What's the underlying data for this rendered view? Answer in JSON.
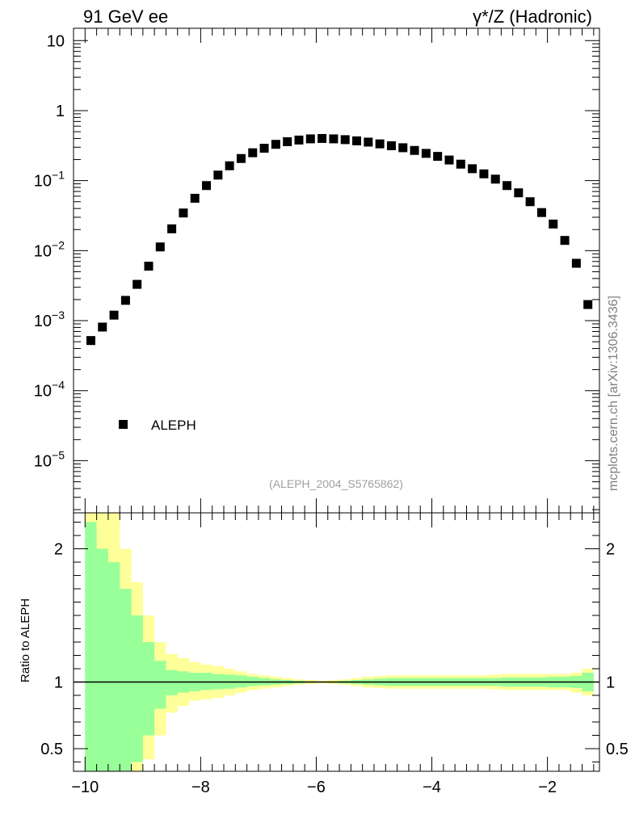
{
  "header": {
    "left_title": "91 GeV ee",
    "right_title": "γ*/Z (Hadronic)"
  },
  "side_label": "mcplots.cern.ch [arXiv:1306.3436]",
  "analysis_tag": "(ALEPH_2004_S5765862)",
  "legend": {
    "entry": "ALEPH",
    "position": "bottom-left"
  },
  "ratio_ylabel": "Ratio to ALEPH",
  "colors": {
    "band_outer": "#ffff99",
    "band_inner": "#99ff99",
    "marker": "#000000",
    "side_label": "#808080",
    "analysis_tag": "#a0a0a0"
  },
  "chart_data": [
    {
      "type": "scatter",
      "series": [
        {
          "name": "ALEPH",
          "x": [
            -9.9,
            -9.7,
            -9.5,
            -9.3,
            -9.1,
            -8.9,
            -8.7,
            -8.5,
            -8.3,
            -8.1,
            -7.9,
            -7.7,
            -7.5,
            -7.3,
            -7.1,
            -6.9,
            -6.7,
            -6.5,
            -6.3,
            -6.1,
            -5.9,
            -5.7,
            -5.5,
            -5.3,
            -5.1,
            -4.9,
            -4.7,
            -4.5,
            -4.3,
            -4.1,
            -3.9,
            -3.7,
            -3.5,
            -3.3,
            -3.1,
            -2.9,
            -2.7,
            -2.5,
            -2.3,
            -2.1,
            -1.9,
            -1.7,
            -1.5,
            -1.3
          ],
          "y": [
            0.00052,
            0.00081,
            0.0012,
            0.00195,
            0.0033,
            0.006,
            0.0113,
            0.0205,
            0.0345,
            0.056,
            0.085,
            0.12,
            0.163,
            0.207,
            0.25,
            0.29,
            0.33,
            0.36,
            0.38,
            0.395,
            0.4,
            0.395,
            0.385,
            0.37,
            0.355,
            0.335,
            0.315,
            0.295,
            0.27,
            0.245,
            0.222,
            0.197,
            0.172,
            0.148,
            0.125,
            0.105,
            0.085,
            0.067,
            0.05,
            0.035,
            0.024,
            0.014,
            0.0066,
            0.0017
          ]
        }
      ],
      "y_scale": "log",
      "xlim": [
        -10.2,
        -1.1
      ],
      "ylim": [
        1.8e-06,
        15
      ],
      "y_ticks": [
        {
          "value": 10,
          "base": "10",
          "exp": ""
        },
        {
          "value": 1,
          "base": "1",
          "exp": ""
        },
        {
          "value": 0.1,
          "base": "10",
          "exp": "−1"
        },
        {
          "value": 0.01,
          "base": "10",
          "exp": "−2"
        },
        {
          "value": 0.001,
          "base": "10",
          "exp": "−3"
        },
        {
          "value": 0.0001,
          "base": "10",
          "exp": "−4"
        },
        {
          "value": 1e-05,
          "base": "10",
          "exp": "−5"
        }
      ],
      "grid": false
    },
    {
      "type": "area",
      "ylabel": "Ratio to ALEPH",
      "xlim": [
        -10.2,
        -1.1
      ],
      "ylim": [
        0.33,
        2.27
      ],
      "x_ticks": [
        "−10",
        "−8",
        "−6",
        "−4",
        "−2"
      ],
      "x_tick_values": [
        -10,
        -8,
        -6,
        -4,
        -2
      ],
      "y_ticks": [
        "0.5",
        "1",
        "2"
      ],
      "y_tick_values": [
        0.5,
        1,
        2
      ],
      "reference_line": 1,
      "bin_edges": [
        -10.0,
        -9.8,
        -9.6,
        -9.4,
        -9.2,
        -9.0,
        -8.8,
        -8.6,
        -8.4,
        -8.2,
        -8.0,
        -7.8,
        -7.6,
        -7.4,
        -7.2,
        -7.0,
        -6.8,
        -6.6,
        -6.4,
        -6.2,
        -6.0,
        -5.8,
        -5.6,
        -5.4,
        -5.2,
        -5.0,
        -4.8,
        -4.6,
        -4.4,
        -4.2,
        -4.0,
        -3.8,
        -3.6,
        -3.4,
        -3.2,
        -3.0,
        -2.8,
        -2.6,
        -2.4,
        -2.2,
        -2.0,
        -1.8,
        -1.6,
        -1.4,
        -1.2
      ],
      "band_outer_hi": [
        2.6,
        2.6,
        2.3,
        2.0,
        1.75,
        1.5,
        1.3,
        1.21,
        1.18,
        1.15,
        1.13,
        1.12,
        1.1,
        1.08,
        1.06,
        1.05,
        1.04,
        1.03,
        1.02,
        1.015,
        1.01,
        1.015,
        1.02,
        1.03,
        1.04,
        1.045,
        1.05,
        1.05,
        1.05,
        1.05,
        1.05,
        1.05,
        1.05,
        1.05,
        1.05,
        1.055,
        1.06,
        1.06,
        1.06,
        1.06,
        1.06,
        1.06,
        1.07,
        1.1
      ],
      "band_outer_lo": [
        0.2,
        0.2,
        0.2,
        0.2,
        0.25,
        0.42,
        0.6,
        0.77,
        0.82,
        0.86,
        0.87,
        0.88,
        0.9,
        0.92,
        0.94,
        0.95,
        0.96,
        0.97,
        0.98,
        0.985,
        0.99,
        0.985,
        0.98,
        0.97,
        0.96,
        0.955,
        0.95,
        0.95,
        0.95,
        0.95,
        0.95,
        0.95,
        0.95,
        0.95,
        0.95,
        0.945,
        0.94,
        0.94,
        0.94,
        0.94,
        0.94,
        0.94,
        0.92,
        0.9
      ],
      "band_inner_hi": [
        2.2,
        2.0,
        1.9,
        1.7,
        1.5,
        1.3,
        1.16,
        1.09,
        1.08,
        1.07,
        1.07,
        1.06,
        1.055,
        1.05,
        1.04,
        1.03,
        1.02,
        1.015,
        1.01,
        1.005,
        1.0,
        1.005,
        1.01,
        1.015,
        1.02,
        1.025,
        1.03,
        1.03,
        1.03,
        1.03,
        1.03,
        1.03,
        1.03,
        1.03,
        1.03,
        1.03,
        1.035,
        1.035,
        1.035,
        1.035,
        1.04,
        1.04,
        1.045,
        1.07
      ],
      "band_inner_lo": [
        0.2,
        0.2,
        0.2,
        0.2,
        0.4,
        0.6,
        0.8,
        0.9,
        0.92,
        0.93,
        0.94,
        0.945,
        0.95,
        0.96,
        0.97,
        0.975,
        0.98,
        0.985,
        0.99,
        0.995,
        1.0,
        0.995,
        0.99,
        0.985,
        0.98,
        0.975,
        0.97,
        0.97,
        0.97,
        0.97,
        0.97,
        0.97,
        0.97,
        0.97,
        0.97,
        0.97,
        0.965,
        0.965,
        0.965,
        0.965,
        0.96,
        0.96,
        0.955,
        0.93
      ]
    }
  ]
}
